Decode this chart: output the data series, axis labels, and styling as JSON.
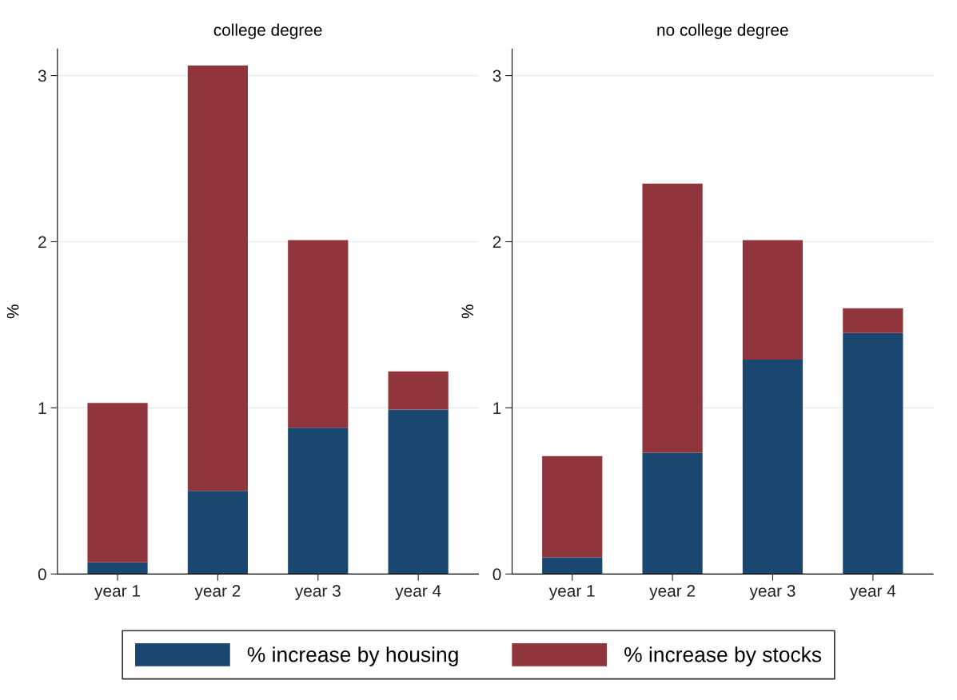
{
  "chart_data": [
    {
      "type": "bar",
      "title": "college degree",
      "ylabel": "%",
      "categories": [
        "year 1",
        "year 2",
        "year 3",
        "year 4"
      ],
      "stacked": true,
      "ylim": [
        0,
        3.16
      ],
      "yticks": [
        0,
        1,
        2,
        3
      ],
      "grid": "y",
      "legend": "bottom",
      "series": [
        {
          "name": "% increase by housing",
          "color": "#1a476f",
          "values": [
            0.07,
            0.5,
            0.88,
            0.99
          ]
        },
        {
          "name": "% increase by stocks",
          "color": "#90353b",
          "values": [
            0.96,
            2.56,
            1.13,
            0.23
          ]
        }
      ]
    },
    {
      "type": "bar",
      "title": "no college degree",
      "ylabel": "%",
      "categories": [
        "year 1",
        "year 2",
        "year 3",
        "year 4"
      ],
      "stacked": true,
      "ylim": [
        0,
        3.16
      ],
      "yticks": [
        0,
        1,
        2,
        3
      ],
      "grid": "y",
      "series": [
        {
          "color": "#1a476f",
          "values": [
            0.1,
            0.73,
            1.29,
            1.45
          ]
        },
        {
          "color": "#90353b",
          "values": [
            0.61,
            1.62,
            0.72,
            0.15
          ]
        }
      ]
    }
  ]
}
